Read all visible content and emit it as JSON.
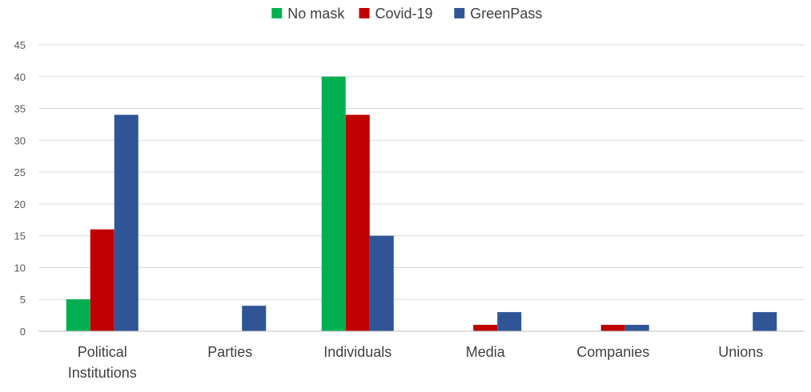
{
  "chart_data": {
    "type": "bar",
    "categories": [
      "Political Institutions",
      "Parties",
      "Individuals",
      "Media",
      "Companies",
      "Unions"
    ],
    "category_lines": [
      [
        "Political",
        "Institutions"
      ],
      [
        "Parties"
      ],
      [
        "Individuals"
      ],
      [
        "Media"
      ],
      [
        "Companies"
      ],
      [
        "Unions"
      ]
    ],
    "series": [
      {
        "name": "No mask",
        "color": "#00b050",
        "values": [
          5,
          0,
          40,
          0,
          0,
          0
        ]
      },
      {
        "name": "Covid-19",
        "color": "#c00000",
        "values": [
          16,
          0,
          34,
          1,
          1,
          0
        ]
      },
      {
        "name": "GreenPass",
        "color": "#2f5597",
        "values": [
          34,
          4,
          15,
          3,
          1,
          3
        ]
      }
    ],
    "title": "",
    "xlabel": "",
    "ylabel": "",
    "ylim": [
      0,
      45
    ],
    "yticks": [
      0,
      5,
      10,
      15,
      20,
      25,
      30,
      35,
      40,
      45
    ],
    "grid": true,
    "legend_position": "top"
  }
}
